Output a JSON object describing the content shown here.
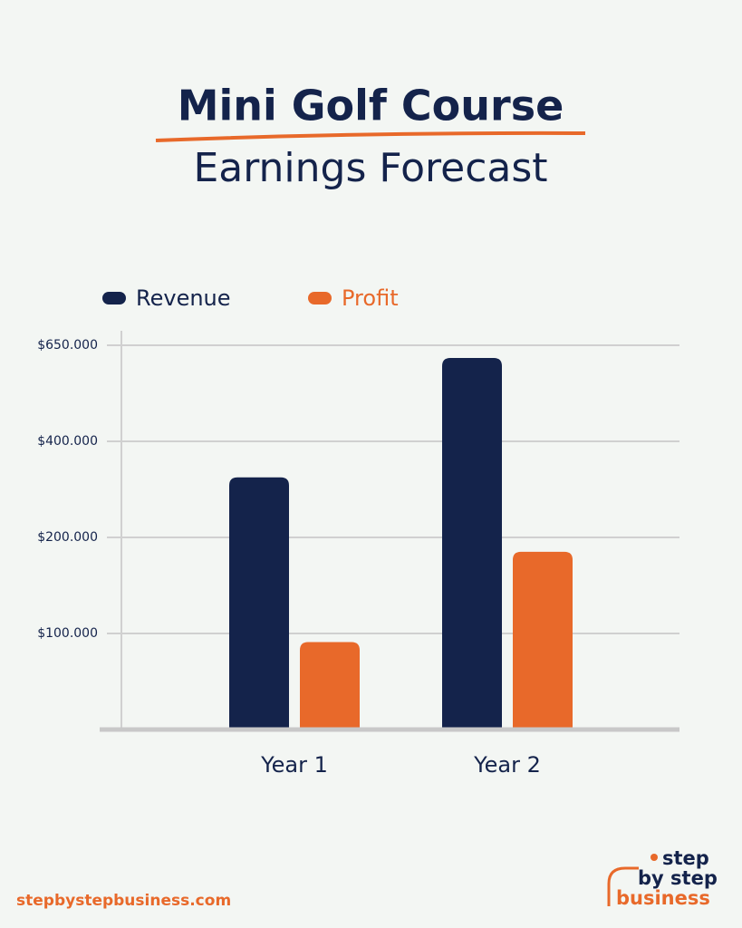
{
  "chart_data": {
    "type": "bar",
    "title": "Mini Golf Course",
    "subtitle": "Earnings Forecast",
    "categories": [
      "Year 1",
      "Year 2"
    ],
    "series": [
      {
        "name": "Revenue",
        "color": "#14234b",
        "values": [
          325000,
          617000
        ]
      },
      {
        "name": "Profit",
        "color": "#e8692a",
        "values": [
          91000,
          185000
        ]
      }
    ],
    "ylim": [
      0,
      650000
    ],
    "yticks": [
      {
        "value": 100000,
        "label": "$100.000"
      },
      {
        "value": 200000,
        "label": "$200.000"
      },
      {
        "value": 400000,
        "label": "$400.000"
      },
      {
        "value": 650000,
        "label": "$650.000"
      }
    ],
    "grid": true
  },
  "footer": {
    "url": "stepbystepbusiness.com",
    "logo": [
      "step",
      "by step",
      "business"
    ]
  }
}
